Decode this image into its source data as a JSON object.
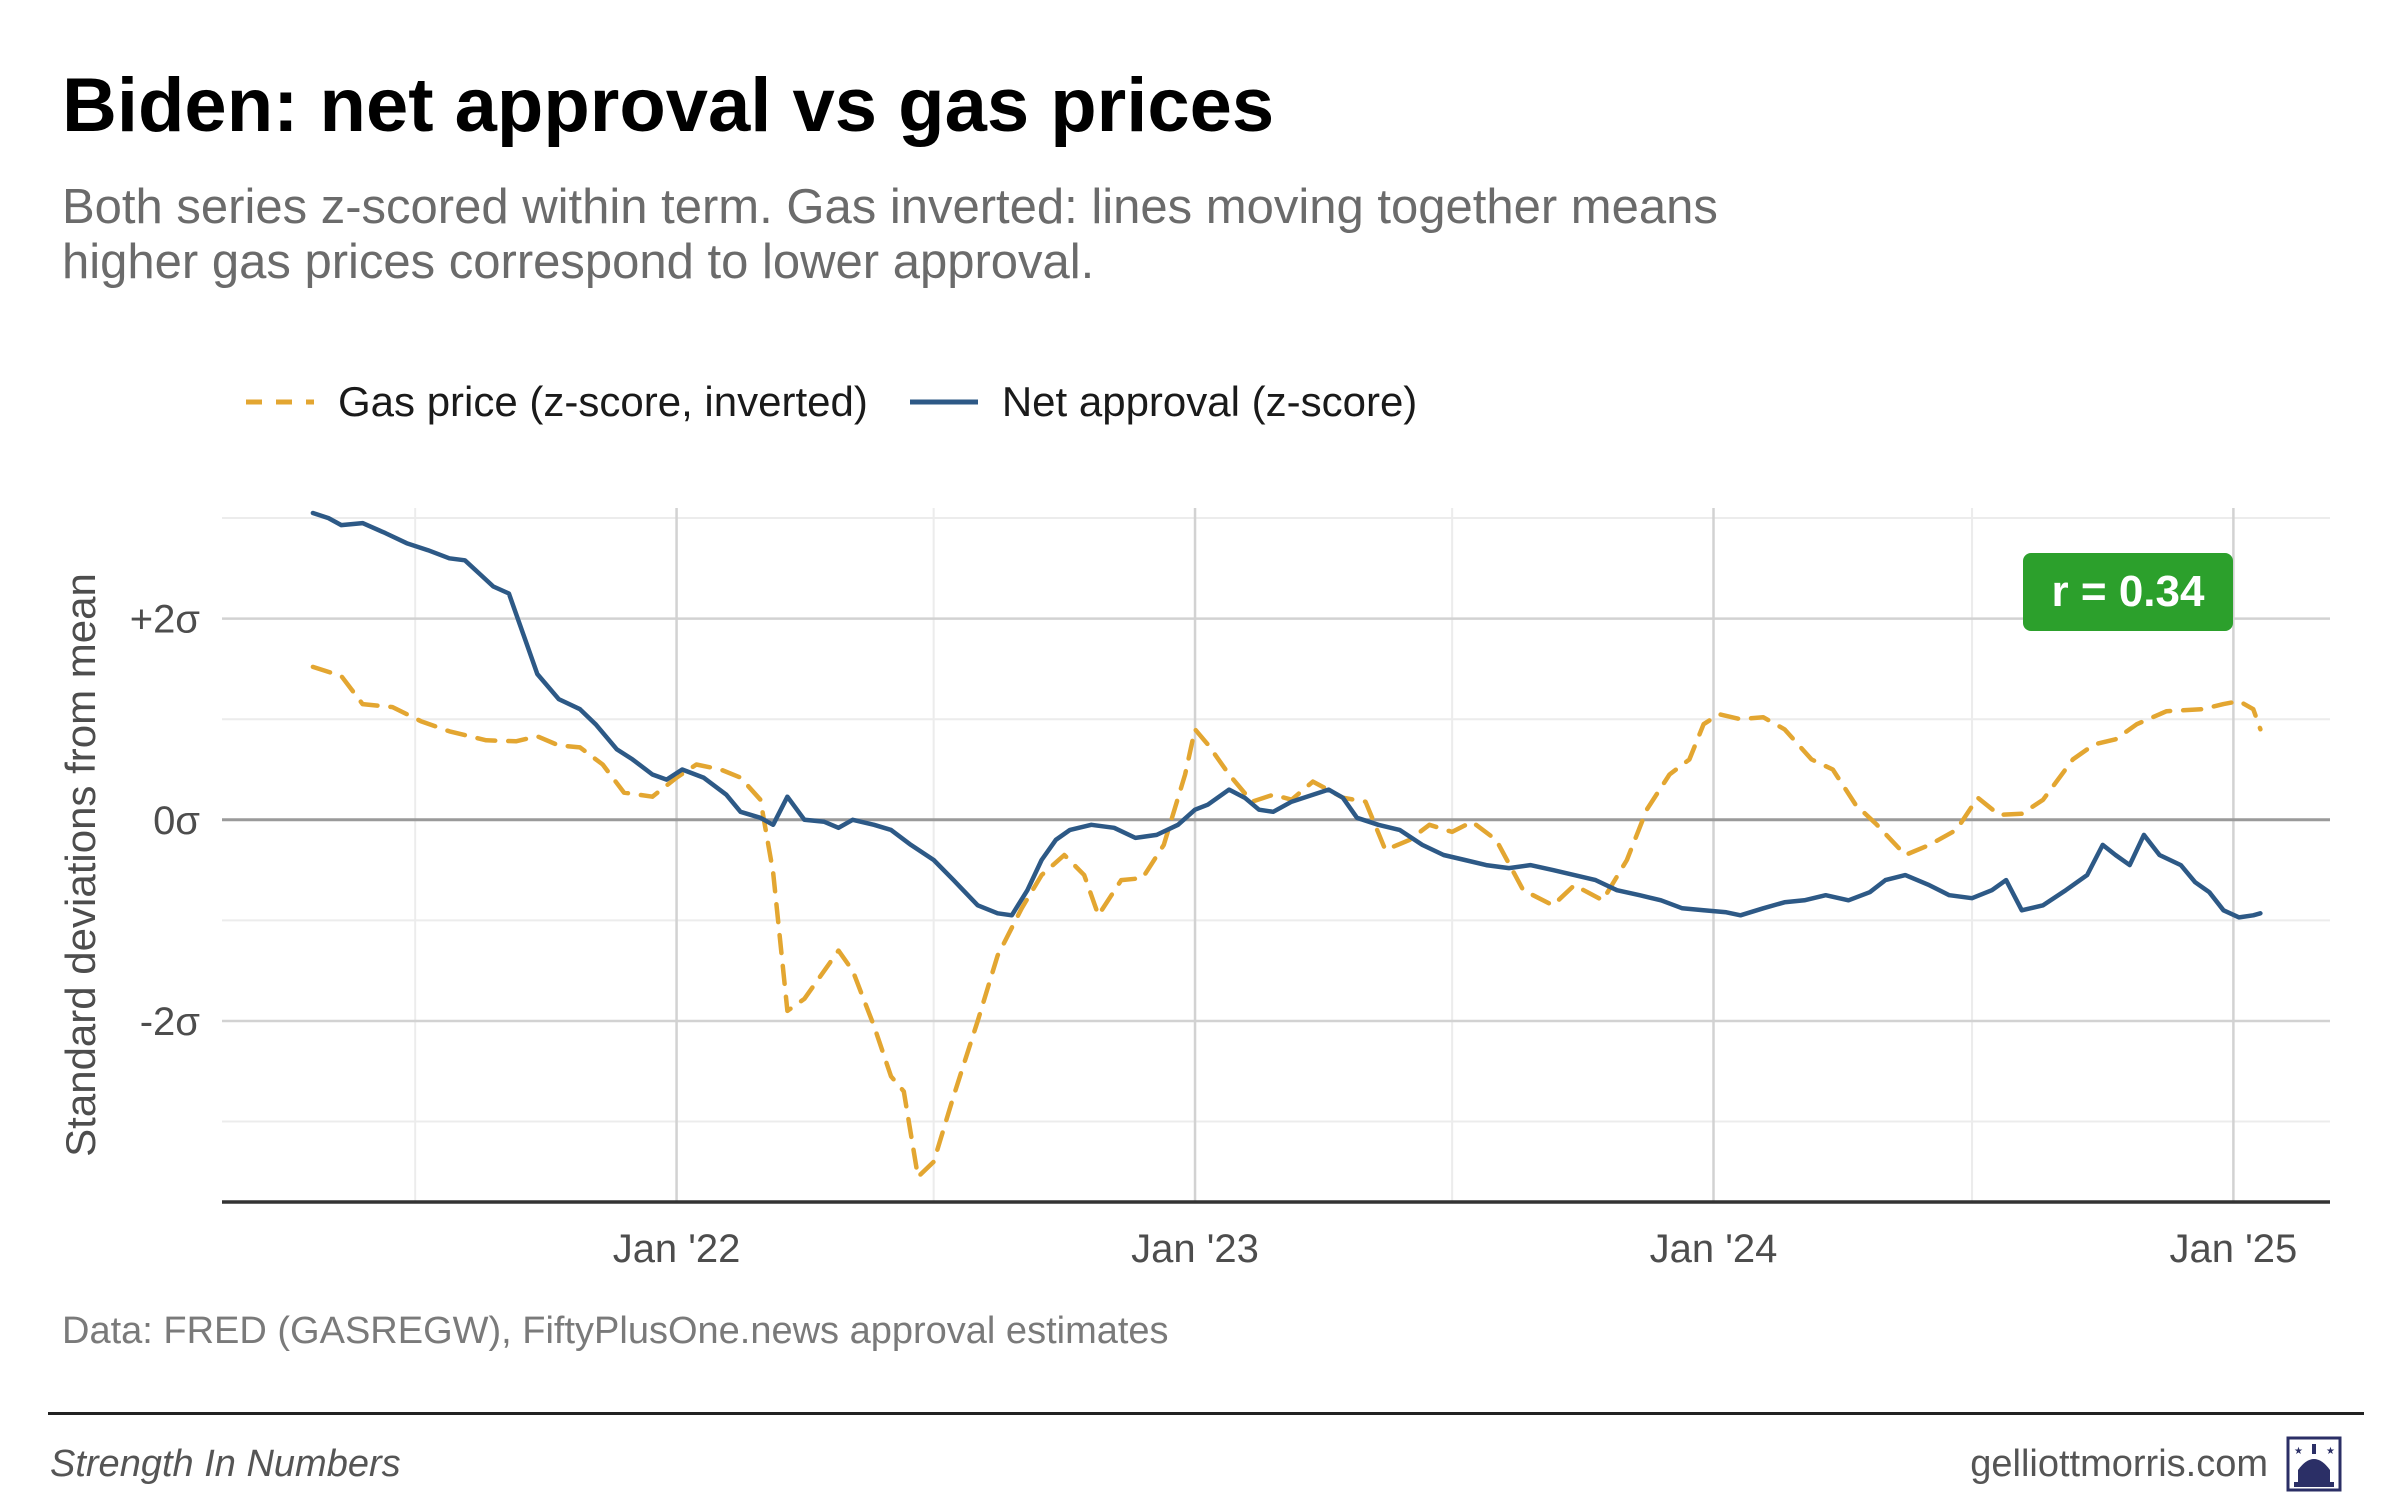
{
  "header": {
    "title": "Biden: net approval vs gas prices",
    "subtitle": "Both series z-scored within term. Gas inverted: lines moving together means higher gas prices correspond to lower approval."
  },
  "legend": {
    "items": [
      {
        "label": "Gas price (z-score, inverted)",
        "color": "#e3a631",
        "style": "dashed"
      },
      {
        "label": "Net approval (z-score)",
        "color": "#2d5986",
        "style": "solid"
      }
    ]
  },
  "badge": {
    "text": "r = 0.34",
    "color": "#2ca02c"
  },
  "source": "Data: FRED (GASREGW), FiftyPlusOne.news approval estimates",
  "footer": {
    "left": "Strength In Numbers",
    "right": "gelliottmorris.com",
    "logo_icon": "capitol-dome-icon"
  },
  "chart_data": {
    "type": "line",
    "ylabel": "Standard deviations from mean",
    "xlabel": "",
    "y_ticks": [
      {
        "value": 2,
        "label": "+2σ"
      },
      {
        "value": 0,
        "label": "0σ"
      },
      {
        "value": -2,
        "label": "-2σ"
      }
    ],
    "x_ticks": [
      {
        "value": "2022-01-01",
        "label": "Jan '22"
      },
      {
        "value": "2023-01-01",
        "label": "Jan '23"
      },
      {
        "value": "2024-01-01",
        "label": "Jan '24"
      },
      {
        "value": "2025-01-01",
        "label": "Jan '25"
      }
    ],
    "ylim": [
      -3.8,
      3.1
    ],
    "xlim": [
      "2021-02-15",
      "2025-03-10"
    ],
    "grid": true,
    "legend_position": "top",
    "series": [
      {
        "name": "Gas price (z-score, inverted)",
        "color": "#e3a631",
        "style": "dashed",
        "points": [
          [
            "2021-04-20",
            1.52
          ],
          [
            "2021-05-10",
            1.43
          ],
          [
            "2021-05-25",
            1.15
          ],
          [
            "2021-06-15",
            1.12
          ],
          [
            "2021-07-05",
            0.98
          ],
          [
            "2021-07-25",
            0.88
          ],
          [
            "2021-08-20",
            0.79
          ],
          [
            "2021-09-10",
            0.78
          ],
          [
            "2021-09-25",
            0.83
          ],
          [
            "2021-10-10",
            0.74
          ],
          [
            "2021-10-25",
            0.72
          ],
          [
            "2021-11-10",
            0.55
          ],
          [
            "2021-11-25",
            0.27
          ],
          [
            "2021-12-15",
            0.23
          ],
          [
            "2022-01-01",
            0.42
          ],
          [
            "2022-01-15",
            0.55
          ],
          [
            "2022-02-01",
            0.5
          ],
          [
            "2022-02-15",
            0.42
          ],
          [
            "2022-03-01",
            0.2
          ],
          [
            "2022-03-10",
            -0.52
          ],
          [
            "2022-03-20",
            -1.9
          ],
          [
            "2022-04-01",
            -1.78
          ],
          [
            "2022-04-15",
            -1.5
          ],
          [
            "2022-04-25",
            -1.3
          ],
          [
            "2022-05-05",
            -1.5
          ],
          [
            "2022-05-20",
            -2.05
          ],
          [
            "2022-06-01",
            -2.55
          ],
          [
            "2022-06-10",
            -2.7
          ],
          [
            "2022-06-20",
            -3.55
          ],
          [
            "2022-07-01",
            -3.4
          ],
          [
            "2022-07-15",
            -2.75
          ],
          [
            "2022-08-01",
            -2.0
          ],
          [
            "2022-08-15",
            -1.35
          ],
          [
            "2022-09-01",
            -0.88
          ],
          [
            "2022-09-15",
            -0.55
          ],
          [
            "2022-10-01",
            -0.35
          ],
          [
            "2022-10-15",
            -0.55
          ],
          [
            "2022-10-25",
            -0.95
          ],
          [
            "2022-11-10",
            -0.6
          ],
          [
            "2022-11-25",
            -0.58
          ],
          [
            "2022-12-10",
            -0.25
          ],
          [
            "2022-12-25",
            0.45
          ],
          [
            "2023-01-01",
            0.9
          ],
          [
            "2023-01-10",
            0.75
          ],
          [
            "2023-01-25",
            0.45
          ],
          [
            "2023-02-10",
            0.18
          ],
          [
            "2023-02-25",
            0.25
          ],
          [
            "2023-03-10",
            0.2
          ],
          [
            "2023-03-25",
            0.38
          ],
          [
            "2023-04-15",
            0.22
          ],
          [
            "2023-05-01",
            0.18
          ],
          [
            "2023-05-15",
            -0.3
          ],
          [
            "2023-06-01",
            -0.2
          ],
          [
            "2023-06-15",
            -0.05
          ],
          [
            "2023-07-01",
            -0.12
          ],
          [
            "2023-07-15",
            -0.02
          ],
          [
            "2023-08-01",
            -0.2
          ],
          [
            "2023-08-20",
            -0.7
          ],
          [
            "2023-09-10",
            -0.85
          ],
          [
            "2023-09-25",
            -0.65
          ],
          [
            "2023-10-15",
            -0.8
          ],
          [
            "2023-11-01",
            -0.4
          ],
          [
            "2023-11-15",
            0.1
          ],
          [
            "2023-12-01",
            0.45
          ],
          [
            "2023-12-15",
            0.6
          ],
          [
            "2023-12-25",
            0.95
          ],
          [
            "2024-01-05",
            1.05
          ],
          [
            "2024-01-20",
            1.0
          ],
          [
            "2024-02-05",
            1.02
          ],
          [
            "2024-02-20",
            0.9
          ],
          [
            "2024-03-10",
            0.6
          ],
          [
            "2024-03-25",
            0.5
          ],
          [
            "2024-04-10",
            0.15
          ],
          [
            "2024-04-25",
            -0.05
          ],
          [
            "2024-05-15",
            -0.35
          ],
          [
            "2024-06-01",
            -0.25
          ],
          [
            "2024-06-20",
            -0.1
          ],
          [
            "2024-07-05",
            0.22
          ],
          [
            "2024-07-20",
            0.05
          ],
          [
            "2024-08-05",
            0.06
          ],
          [
            "2024-08-20",
            0.2
          ],
          [
            "2024-09-10",
            0.6
          ],
          [
            "2024-09-25",
            0.75
          ],
          [
            "2024-10-10",
            0.8
          ],
          [
            "2024-10-25",
            0.95
          ],
          [
            "2024-11-15",
            1.08
          ],
          [
            "2024-12-10",
            1.1
          ],
          [
            "2024-12-25",
            1.15
          ],
          [
            "2025-01-05",
            1.18
          ],
          [
            "2025-01-15",
            1.1
          ],
          [
            "2025-01-20",
            0.9
          ]
        ]
      },
      {
        "name": "Net approval (z-score)",
        "color": "#2d5986",
        "style": "solid",
        "points": [
          [
            "2021-04-20",
            3.05
          ],
          [
            "2021-05-01",
            3.0
          ],
          [
            "2021-05-10",
            2.93
          ],
          [
            "2021-05-25",
            2.95
          ],
          [
            "2021-06-10",
            2.85
          ],
          [
            "2021-06-25",
            2.75
          ],
          [
            "2021-07-10",
            2.68
          ],
          [
            "2021-07-25",
            2.6
          ],
          [
            "2021-08-05",
            2.58
          ],
          [
            "2021-08-15",
            2.45
          ],
          [
            "2021-08-25",
            2.32
          ],
          [
            "2021-09-05",
            2.25
          ],
          [
            "2021-09-15",
            1.85
          ],
          [
            "2021-09-25",
            1.45
          ],
          [
            "2021-10-10",
            1.2
          ],
          [
            "2021-10-25",
            1.1
          ],
          [
            "2021-11-05",
            0.95
          ],
          [
            "2021-11-20",
            0.7
          ],
          [
            "2021-12-01",
            0.6
          ],
          [
            "2021-12-15",
            0.45
          ],
          [
            "2021-12-25",
            0.4
          ],
          [
            "2022-01-05",
            0.5
          ],
          [
            "2022-01-20",
            0.42
          ],
          [
            "2022-02-05",
            0.25
          ],
          [
            "2022-02-15",
            0.08
          ],
          [
            "2022-03-01",
            0.02
          ],
          [
            "2022-03-10",
            -0.05
          ],
          [
            "2022-03-20",
            0.23
          ],
          [
            "2022-04-01",
            0.0
          ],
          [
            "2022-04-15",
            -0.02
          ],
          [
            "2022-04-25",
            -0.08
          ],
          [
            "2022-05-05",
            0.0
          ],
          [
            "2022-05-20",
            -0.05
          ],
          [
            "2022-06-01",
            -0.1
          ],
          [
            "2022-06-15",
            -0.25
          ],
          [
            "2022-07-01",
            -0.4
          ],
          [
            "2022-07-15",
            -0.6
          ],
          [
            "2022-08-01",
            -0.85
          ],
          [
            "2022-08-15",
            -0.93
          ],
          [
            "2022-08-25",
            -0.95
          ],
          [
            "2022-09-05",
            -0.7
          ],
          [
            "2022-09-15",
            -0.4
          ],
          [
            "2022-09-25",
            -0.2
          ],
          [
            "2022-10-05",
            -0.1
          ],
          [
            "2022-10-20",
            -0.05
          ],
          [
            "2022-11-05",
            -0.08
          ],
          [
            "2022-11-20",
            -0.18
          ],
          [
            "2022-12-05",
            -0.15
          ],
          [
            "2022-12-20",
            -0.05
          ],
          [
            "2023-01-01",
            0.1
          ],
          [
            "2023-01-10",
            0.15
          ],
          [
            "2023-01-25",
            0.3
          ],
          [
            "2023-02-05",
            0.22
          ],
          [
            "2023-02-15",
            0.1
          ],
          [
            "2023-02-25",
            0.08
          ],
          [
            "2023-03-10",
            0.18
          ],
          [
            "2023-03-25",
            0.25
          ],
          [
            "2023-04-05",
            0.3
          ],
          [
            "2023-04-15",
            0.22
          ],
          [
            "2023-04-25",
            0.02
          ],
          [
            "2023-05-10",
            -0.05
          ],
          [
            "2023-05-25",
            -0.1
          ],
          [
            "2023-06-10",
            -0.25
          ],
          [
            "2023-06-25",
            -0.35
          ],
          [
            "2023-07-10",
            -0.4
          ],
          [
            "2023-07-25",
            -0.45
          ],
          [
            "2023-08-10",
            -0.48
          ],
          [
            "2023-08-25",
            -0.45
          ],
          [
            "2023-09-10",
            -0.5
          ],
          [
            "2023-09-25",
            -0.55
          ],
          [
            "2023-10-10",
            -0.6
          ],
          [
            "2023-10-25",
            -0.7
          ],
          [
            "2023-11-10",
            -0.75
          ],
          [
            "2023-11-25",
            -0.8
          ],
          [
            "2023-12-10",
            -0.88
          ],
          [
            "2023-12-25",
            -0.9
          ],
          [
            "2024-01-10",
            -0.92
          ],
          [
            "2024-01-20",
            -0.95
          ],
          [
            "2024-02-05",
            -0.88
          ],
          [
            "2024-02-20",
            -0.82
          ],
          [
            "2024-03-05",
            -0.8
          ],
          [
            "2024-03-20",
            -0.75
          ],
          [
            "2024-04-05",
            -0.8
          ],
          [
            "2024-04-20",
            -0.72
          ],
          [
            "2024-05-01",
            -0.6
          ],
          [
            "2024-05-15",
            -0.55
          ],
          [
            "2024-06-01",
            -0.65
          ],
          [
            "2024-06-15",
            -0.75
          ],
          [
            "2024-07-01",
            -0.78
          ],
          [
            "2024-07-15",
            -0.7
          ],
          [
            "2024-07-25",
            -0.6
          ],
          [
            "2024-08-05",
            -0.9
          ],
          [
            "2024-08-20",
            -0.85
          ],
          [
            "2024-09-05",
            -0.7
          ],
          [
            "2024-09-20",
            -0.55
          ],
          [
            "2024-10-01",
            -0.25
          ],
          [
            "2024-10-10",
            -0.35
          ],
          [
            "2024-10-20",
            -0.45
          ],
          [
            "2024-10-30",
            -0.15
          ],
          [
            "2024-11-10",
            -0.35
          ],
          [
            "2024-11-25",
            -0.45
          ],
          [
            "2024-12-05",
            -0.62
          ],
          [
            "2024-12-15",
            -0.72
          ],
          [
            "2024-12-25",
            -0.9
          ],
          [
            "2025-01-05",
            -0.97
          ],
          [
            "2025-01-15",
            -0.95
          ],
          [
            "2025-01-20",
            -0.93
          ]
        ]
      }
    ]
  }
}
